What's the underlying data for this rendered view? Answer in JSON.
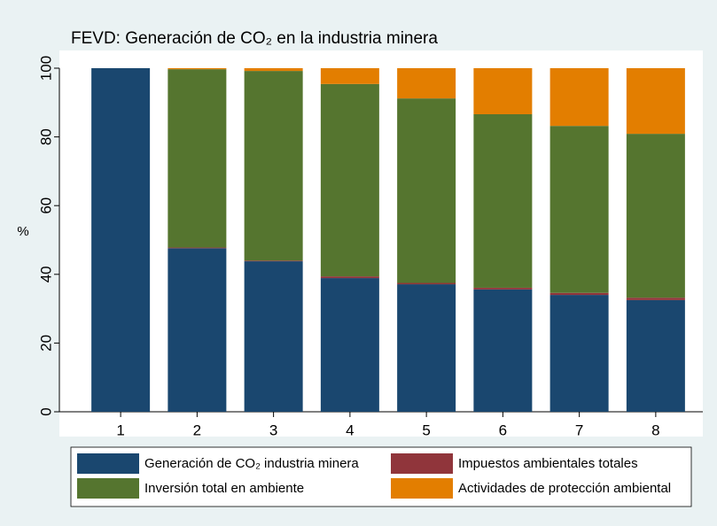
{
  "chart_data": {
    "type": "stacked_bar",
    "title": "FEVD: Generación de CO₂ en la industria minera",
    "y_label": "%",
    "categories": [
      1,
      2,
      3,
      4,
      5,
      6,
      7,
      8
    ],
    "series": [
      {
        "name": "Generación de CO₂ industria minera",
        "color": "#1a476f",
        "values": [
          100,
          47.6,
          43.8,
          38.9,
          37.1,
          35.6,
          34.0,
          32.5
        ]
      },
      {
        "name": "Impuestos ambientales totales",
        "color": "#90353b",
        "values": [
          0,
          0.2,
          0.2,
          0.5,
          0.4,
          0.5,
          0.6,
          0.7
        ]
      },
      {
        "name": "Inversión total en ambiente",
        "color": "#55752f",
        "values": [
          0,
          51.9,
          55.2,
          56.0,
          53.7,
          50.5,
          48.6,
          47.7
        ]
      },
      {
        "name": "Actividades de protección ambiental",
        "color": "#e37e00",
        "values": [
          0,
          0.3,
          0.8,
          4.6,
          8.8,
          13.4,
          16.8,
          19.1
        ]
      }
    ],
    "ylim": [
      0,
      100
    ],
    "yticks": [
      0,
      20,
      40,
      60,
      80,
      100
    ],
    "grid": false,
    "legend": "bottom"
  }
}
